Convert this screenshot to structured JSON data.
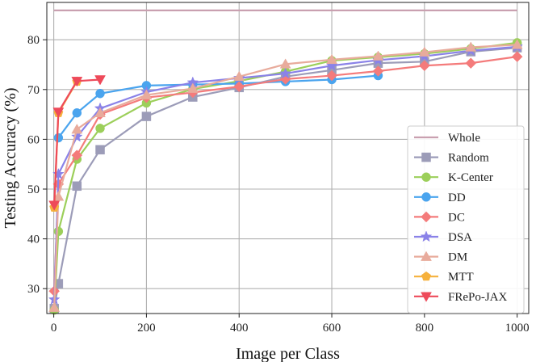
{
  "chart_data": {
    "type": "line",
    "xlabel": "Image per Class",
    "ylabel": "Testing Accuracy (%)",
    "xlim": [
      -15,
      1025
    ],
    "ylim": [
      25,
      87.5
    ],
    "xticks": [
      0,
      200,
      400,
      600,
      800,
      1000
    ],
    "yticks": [
      30,
      40,
      50,
      60,
      70,
      80
    ],
    "grid": true,
    "legend_position": "lower-right",
    "series": [
      {
        "name": "Whole",
        "color": "#c9a0b0",
        "marker": "none",
        "x": [
          0,
          1000
        ],
        "y": [
          85.9,
          85.9
        ]
      },
      {
        "name": "Random",
        "color": "#9c9cb8",
        "marker": "square",
        "x": [
          1,
          10,
          50,
          100,
          200,
          300,
          400,
          500,
          600,
          700,
          800,
          900,
          1000
        ],
        "y": [
          26.0,
          31.0,
          50.6,
          57.9,
          64.6,
          68.5,
          70.4,
          72.6,
          73.9,
          75.3,
          75.6,
          77.6,
          78.4
        ]
      },
      {
        "name": "K-Center",
        "color": "#9ccf5a",
        "marker": "circle",
        "x": [
          1,
          10,
          50,
          100,
          200,
          300,
          400,
          500,
          600,
          700,
          800,
          900,
          1000
        ],
        "y": [
          25.7,
          41.5,
          56.0,
          62.2,
          67.3,
          70.1,
          71.7,
          73.6,
          75.8,
          76.5,
          77.2,
          78.2,
          79.4
        ]
      },
      {
        "name": "DD",
        "color": "#4aa4ee",
        "marker": "circle",
        "x": [
          10,
          50,
          100,
          200,
          300,
          400,
          500,
          600,
          700
        ],
        "y": [
          60.3,
          65.3,
          69.2,
          70.8,
          71.0,
          71.2,
          71.6,
          72.0,
          72.8
        ]
      },
      {
        "name": "DC",
        "color": "#f47b7b",
        "marker": "diamond",
        "x": [
          1,
          10,
          50,
          100,
          200,
          300,
          400,
          500,
          600,
          700,
          800,
          900,
          1000
        ],
        "y": [
          29.5,
          51.0,
          56.8,
          65.0,
          68.4,
          69.4,
          70.6,
          72.1,
          72.8,
          73.7,
          74.8,
          75.3,
          76.6
        ]
      },
      {
        "name": "DSA",
        "color": "#8a82e8",
        "marker": "star",
        "x": [
          1,
          10,
          50,
          100,
          200,
          300,
          400,
          500,
          600,
          700,
          800,
          900,
          1000
        ],
        "y": [
          27.8,
          53.0,
          60.5,
          66.2,
          69.5,
          71.4,
          72.3,
          73.2,
          74.8,
          75.9,
          76.7,
          77.8,
          78.6
        ]
      },
      {
        "name": "DM",
        "color": "#e8ab9c",
        "marker": "triangle-up",
        "x": [
          1,
          10,
          50,
          100,
          200,
          300,
          400,
          500,
          600,
          700,
          800,
          900,
          1000
        ],
        "y": [
          26.2,
          48.5,
          62.0,
          65.3,
          68.9,
          70.2,
          72.6,
          75.1,
          76.0,
          76.7,
          77.5,
          78.5,
          79.0
        ]
      },
      {
        "name": "MTT",
        "color": "#f6b13c",
        "marker": "pentagon",
        "x": [
          1,
          10,
          50
        ],
        "y": [
          46.3,
          65.3,
          71.6
        ]
      },
      {
        "name": "FRePo-JAX",
        "color": "#ee4a5a",
        "marker": "triangle-down",
        "x": [
          1,
          10,
          50,
          100
        ],
        "y": [
          46.8,
          65.5,
          71.7,
          72.0
        ]
      }
    ]
  }
}
